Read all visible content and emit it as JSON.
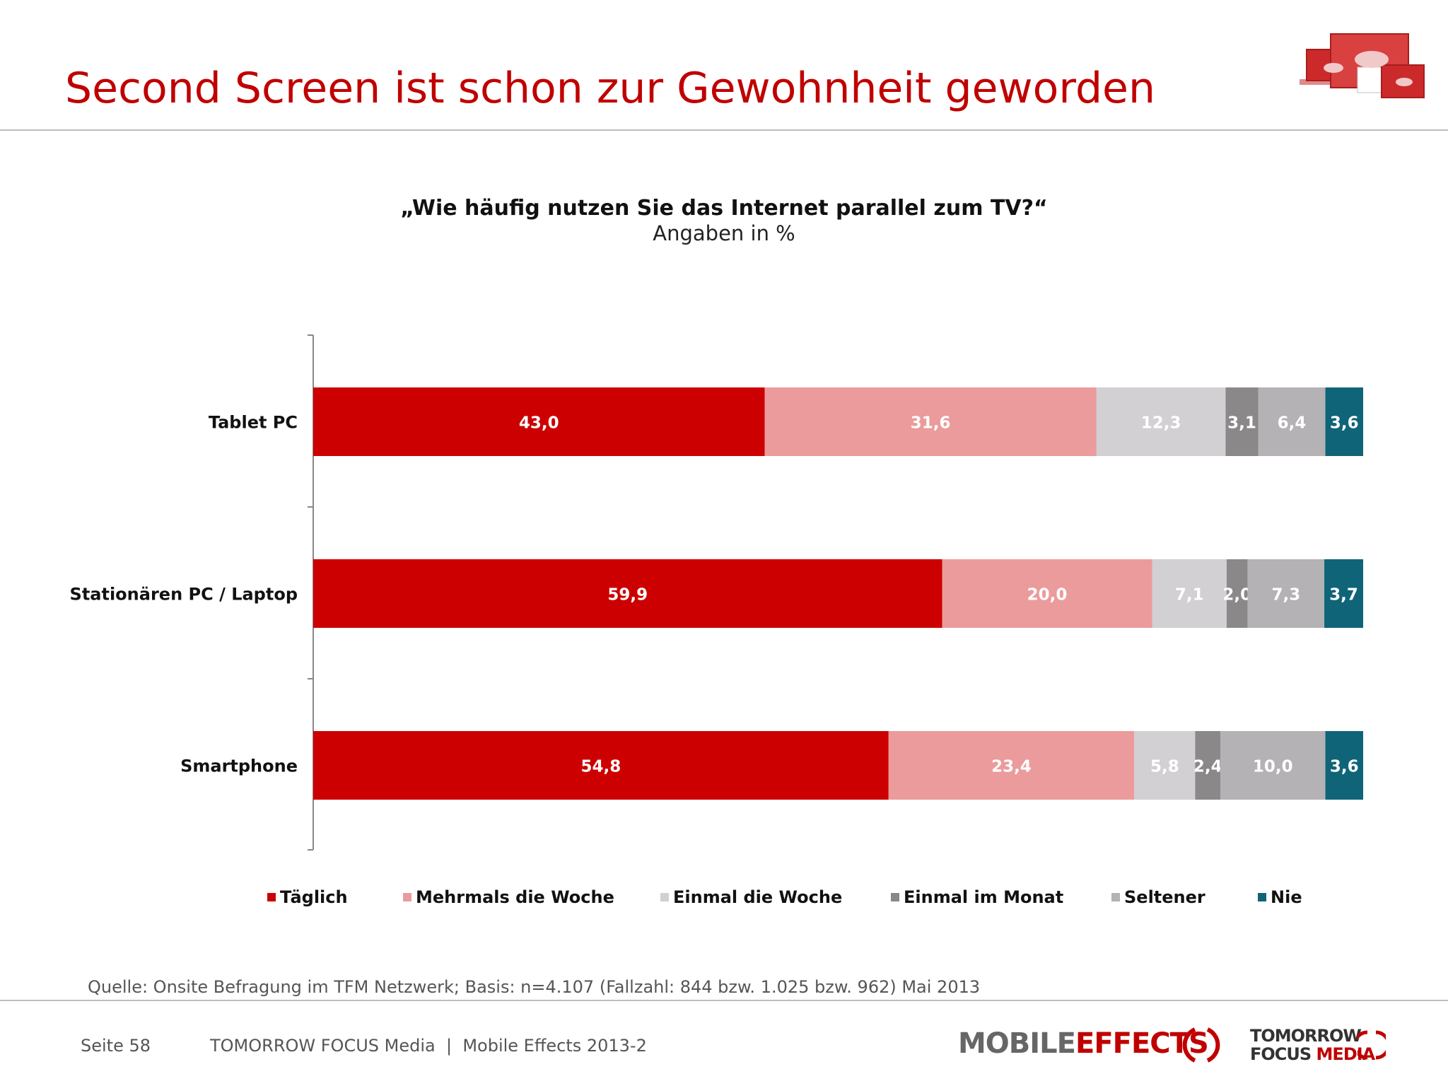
{
  "slide": {
    "title": "Second Screen ist schon zur Gewohnheit geworden",
    "source": "Quelle: Onsite Befragung im TFM Netzwerk; Basis: n=4.107 (Fallzahl: 844 bzw. 1.025 bzw. 962) Mai 2013",
    "footer": {
      "page": "Seite 58",
      "text": "TOMORROW FOCUS Media  |  Mobile Effects 2013-2",
      "brand_mobile_1": "MOBILE",
      "brand_mobile_2": "EFFECTS",
      "brand_tfm_1": "TOMORROW",
      "brand_tfm_2": "FOCUS",
      "brand_tfm_3": "MEDIA"
    },
    "logo_icon": "devices-cloud-icon"
  },
  "chart_data": {
    "type": "bar",
    "orientation": "horizontal",
    "stacked": true,
    "title": "„Wie häufig nutzen Sie das Internet parallel zum TV?“",
    "subtitle": "Angaben in %",
    "categories": [
      "Tablet PC",
      "Stationären PC / Laptop",
      "Smartphone"
    ],
    "series": [
      {
        "name": "Täglich",
        "color": "#cc0000",
        "label_color": "#ffffff",
        "values": [
          43.0,
          59.9,
          54.8
        ],
        "labels": [
          "43,0",
          "59,9",
          "54,8"
        ]
      },
      {
        "name": "Mehrmals die Woche",
        "color": "#eb9b9b",
        "label_color": "#ffffff",
        "values": [
          31.6,
          20.0,
          23.4
        ],
        "labels": [
          "31,6",
          "20,0",
          "23,4"
        ]
      },
      {
        "name": "Einmal die Woche",
        "color": "#d2d0d2",
        "label_color": "#ffffff",
        "values": [
          12.3,
          7.1,
          5.8
        ],
        "labels": [
          "12,3",
          "7,1",
          "5,8"
        ]
      },
      {
        "name": "Einmal im Monat",
        "color": "#8a8889",
        "label_color": "#ffffff",
        "values": [
          3.1,
          2.0,
          2.4
        ],
        "labels": [
          "3,1",
          "2,0",
          "2,4"
        ]
      },
      {
        "name": "Seltener",
        "color": "#b4b2b4",
        "label_color": "#ffffff",
        "values": [
          6.4,
          7.3,
          10.0
        ],
        "labels": [
          "6,4",
          "7,3",
          "10,0"
        ]
      },
      {
        "name": "Nie",
        "color": "#0f6478",
        "label_color": "#ffffff",
        "values": [
          3.6,
          3.7,
          3.6
        ],
        "labels": [
          "3,6",
          "3,7",
          "3,6"
        ]
      }
    ],
    "xlim": [
      0,
      100
    ],
    "axis_visible": false,
    "grid": false,
    "legend_position": "bottom"
  }
}
